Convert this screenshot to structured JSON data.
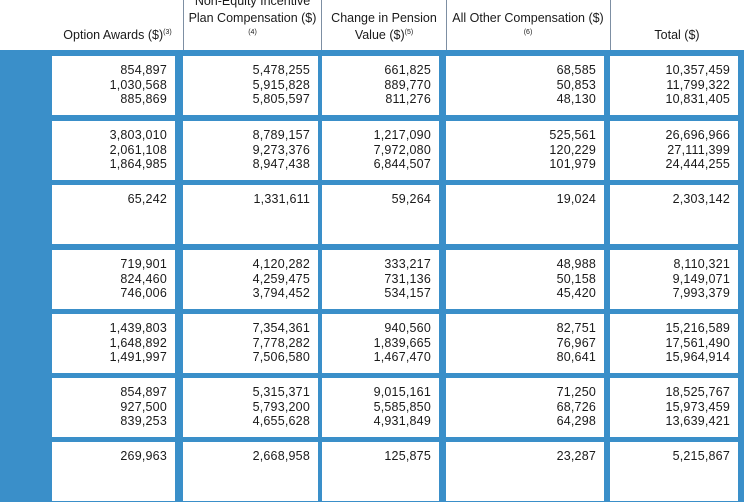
{
  "columns": [
    {
      "label": "Option Awards ($)",
      "sup": "(3)"
    },
    {
      "label": "Non-Equity Incentive Plan Compensation ($)",
      "sup": "(4)"
    },
    {
      "label": "Change in Pension Value ($)",
      "sup": "(5)"
    },
    {
      "label": "All Other Compensation ($)",
      "sup": "(6)"
    },
    {
      "label": "Total ($)",
      "sup": ""
    }
  ],
  "rows": [
    [
      [
        "854,897",
        "1,030,568",
        "885,869"
      ],
      [
        "5,478,255",
        "5,915,828",
        "5,805,597"
      ],
      [
        "661,825",
        "889,770",
        "811,276"
      ],
      [
        "68,585",
        "50,853",
        "48,130"
      ],
      [
        "10,357,459",
        "11,799,322",
        "10,831,405"
      ]
    ],
    [
      [
        "3,803,010",
        "2,061,108",
        "1,864,985"
      ],
      [
        "8,789,157",
        "9,273,376",
        "8,947,438"
      ],
      [
        "1,217,090",
        "7,972,080",
        "6,844,507"
      ],
      [
        "525,561",
        "120,229",
        "101,979"
      ],
      [
        "26,696,966",
        "27,111,399",
        "24,444,255"
      ]
    ],
    [
      [
        "65,242"
      ],
      [
        "1,331,611"
      ],
      [
        "59,264"
      ],
      [
        "19,024"
      ],
      [
        "2,303,142"
      ]
    ],
    [
      [
        "719,901",
        "824,460",
        "746,006"
      ],
      [
        "4,120,282",
        "4,259,475",
        "3,794,452"
      ],
      [
        "333,217",
        "731,136",
        "534,157"
      ],
      [
        "48,988",
        "50,158",
        "45,420"
      ],
      [
        "8,110,321",
        "9,149,071",
        "7,993,379"
      ]
    ],
    [
      [
        "1,439,803",
        "1,648,892",
        "1,491,997"
      ],
      [
        "7,354,361",
        "7,778,282",
        "7,506,580"
      ],
      [
        "940,560",
        "1,839,665",
        "1,467,470"
      ],
      [
        "82,751",
        "76,967",
        "80,641"
      ],
      [
        "15,216,589",
        "17,561,490",
        "15,964,914"
      ]
    ],
    [
      [
        "854,897",
        "927,500",
        "839,253"
      ],
      [
        "5,315,371",
        "5,793,200",
        "4,655,628"
      ],
      [
        "9,015,161",
        "5,585,850",
        "4,931,849"
      ],
      [
        "71,250",
        "68,726",
        "64,298"
      ],
      [
        "18,525,767",
        "15,973,459",
        "13,639,421"
      ]
    ],
    [
      [
        "269,963"
      ],
      [
        "2,668,958"
      ],
      [
        "125,875"
      ],
      [
        "23,287"
      ],
      [
        "5,215,867"
      ]
    ]
  ]
}
